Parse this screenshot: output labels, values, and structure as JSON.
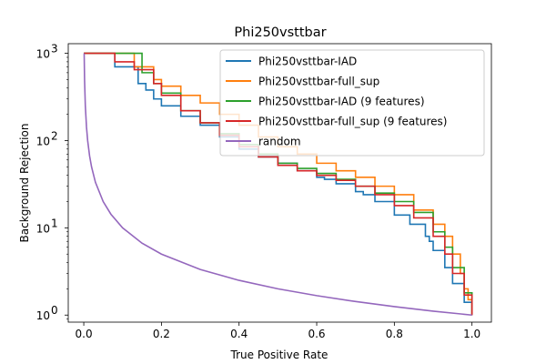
{
  "chart_data": {
    "type": "line",
    "title": "Phi250vsttbar",
    "xlabel": "True Positive Rate",
    "ylabel": "Background Rejection",
    "xlim": [
      -0.04,
      1.05
    ],
    "ylim": [
      0.83,
      1290
    ],
    "yscale": "log",
    "legend_position": "top-right",
    "grid": false,
    "xticks": [
      0.0,
      0.2,
      0.4,
      0.6,
      0.8,
      1.0
    ],
    "xtick_labels": [
      "0.0",
      "0.2",
      "0.4",
      "0.6",
      "0.8",
      "1.0"
    ],
    "yticks": [
      1,
      10,
      100,
      1000
    ],
    "ytick_labels": [
      "10",
      "10",
      "10",
      "10"
    ],
    "ytick_exponents": [
      "0",
      "1",
      "2",
      "3"
    ],
    "series": [
      {
        "name": "Phi250vsttbar-IAD",
        "color": "#1f77b4",
        "x": [
          0.0,
          0.07,
          0.08,
          0.13,
          0.14,
          0.16,
          0.18,
          0.2,
          0.25,
          0.3,
          0.35,
          0.4,
          0.45,
          0.5,
          0.55,
          0.6,
          0.62,
          0.65,
          0.7,
          0.72,
          0.75,
          0.8,
          0.84,
          0.88,
          0.89,
          0.9,
          0.93,
          0.95,
          0.98,
          1.0
        ],
        "y": [
          1000,
          1000,
          700,
          700,
          450,
          380,
          300,
          250,
          190,
          150,
          110,
          80,
          65,
          55,
          45,
          38,
          36,
          32,
          26,
          24,
          20,
          14,
          11,
          8,
          7,
          5.5,
          3.5,
          2.3,
          1.4,
          1.0
        ]
      },
      {
        "name": "Phi250vsttbar-full_sup",
        "color": "#ff7f0e",
        "x": [
          0.0,
          0.12,
          0.13,
          0.17,
          0.18,
          0.2,
          0.25,
          0.3,
          0.35,
          0.4,
          0.45,
          0.5,
          0.55,
          0.6,
          0.65,
          0.7,
          0.75,
          0.8,
          0.85,
          0.9,
          0.93,
          0.95,
          0.97,
          0.98,
          0.99,
          1.0
        ],
        "y": [
          1000,
          1000,
          700,
          700,
          500,
          420,
          330,
          270,
          200,
          150,
          110,
          85,
          70,
          55,
          45,
          38,
          30,
          24,
          16,
          11,
          8,
          5,
          3,
          2,
          1.5,
          1.0
        ]
      },
      {
        "name": "Phi250vsttbar-IAD (9 features)",
        "color": "#2ca02c",
        "x": [
          0.0,
          0.14,
          0.15,
          0.18,
          0.2,
          0.25,
          0.3,
          0.35,
          0.4,
          0.45,
          0.5,
          0.55,
          0.6,
          0.65,
          0.7,
          0.75,
          0.8,
          0.85,
          0.9,
          0.93,
          0.95,
          0.98,
          1.0
        ],
        "y": [
          1000,
          1000,
          600,
          450,
          350,
          220,
          160,
          120,
          90,
          70,
          55,
          48,
          42,
          36,
          30,
          25,
          20,
          15,
          9,
          6,
          3.5,
          1.8,
          1.0
        ]
      },
      {
        "name": "Phi250vsttbar-full_sup (9 features)",
        "color": "#d62728",
        "x": [
          0.0,
          0.07,
          0.08,
          0.12,
          0.13,
          0.18,
          0.2,
          0.25,
          0.3,
          0.35,
          0.4,
          0.45,
          0.5,
          0.55,
          0.6,
          0.65,
          0.7,
          0.75,
          0.8,
          0.85,
          0.9,
          0.93,
          0.95,
          0.98,
          1.0
        ],
        "y": [
          1000,
          1000,
          800,
          800,
          650,
          450,
          330,
          220,
          160,
          115,
          85,
          65,
          52,
          45,
          40,
          35,
          30,
          24,
          18,
          13,
          8,
          5,
          3,
          1.7,
          1.0
        ]
      },
      {
        "name": "random",
        "color": "#9467bd",
        "x": [
          0.001,
          0.002,
          0.004,
          0.007,
          0.01,
          0.015,
          0.02,
          0.03,
          0.05,
          0.07,
          0.1,
          0.15,
          0.2,
          0.3,
          0.4,
          0.5,
          0.6,
          0.7,
          0.8,
          0.9,
          1.0
        ],
        "y": [
          1000,
          500,
          250,
          143,
          100,
          66.7,
          50,
          33.3,
          20,
          14.3,
          10,
          6.67,
          5,
          3.33,
          2.5,
          2.0,
          1.67,
          1.43,
          1.25,
          1.11,
          1.0
        ]
      }
    ]
  }
}
